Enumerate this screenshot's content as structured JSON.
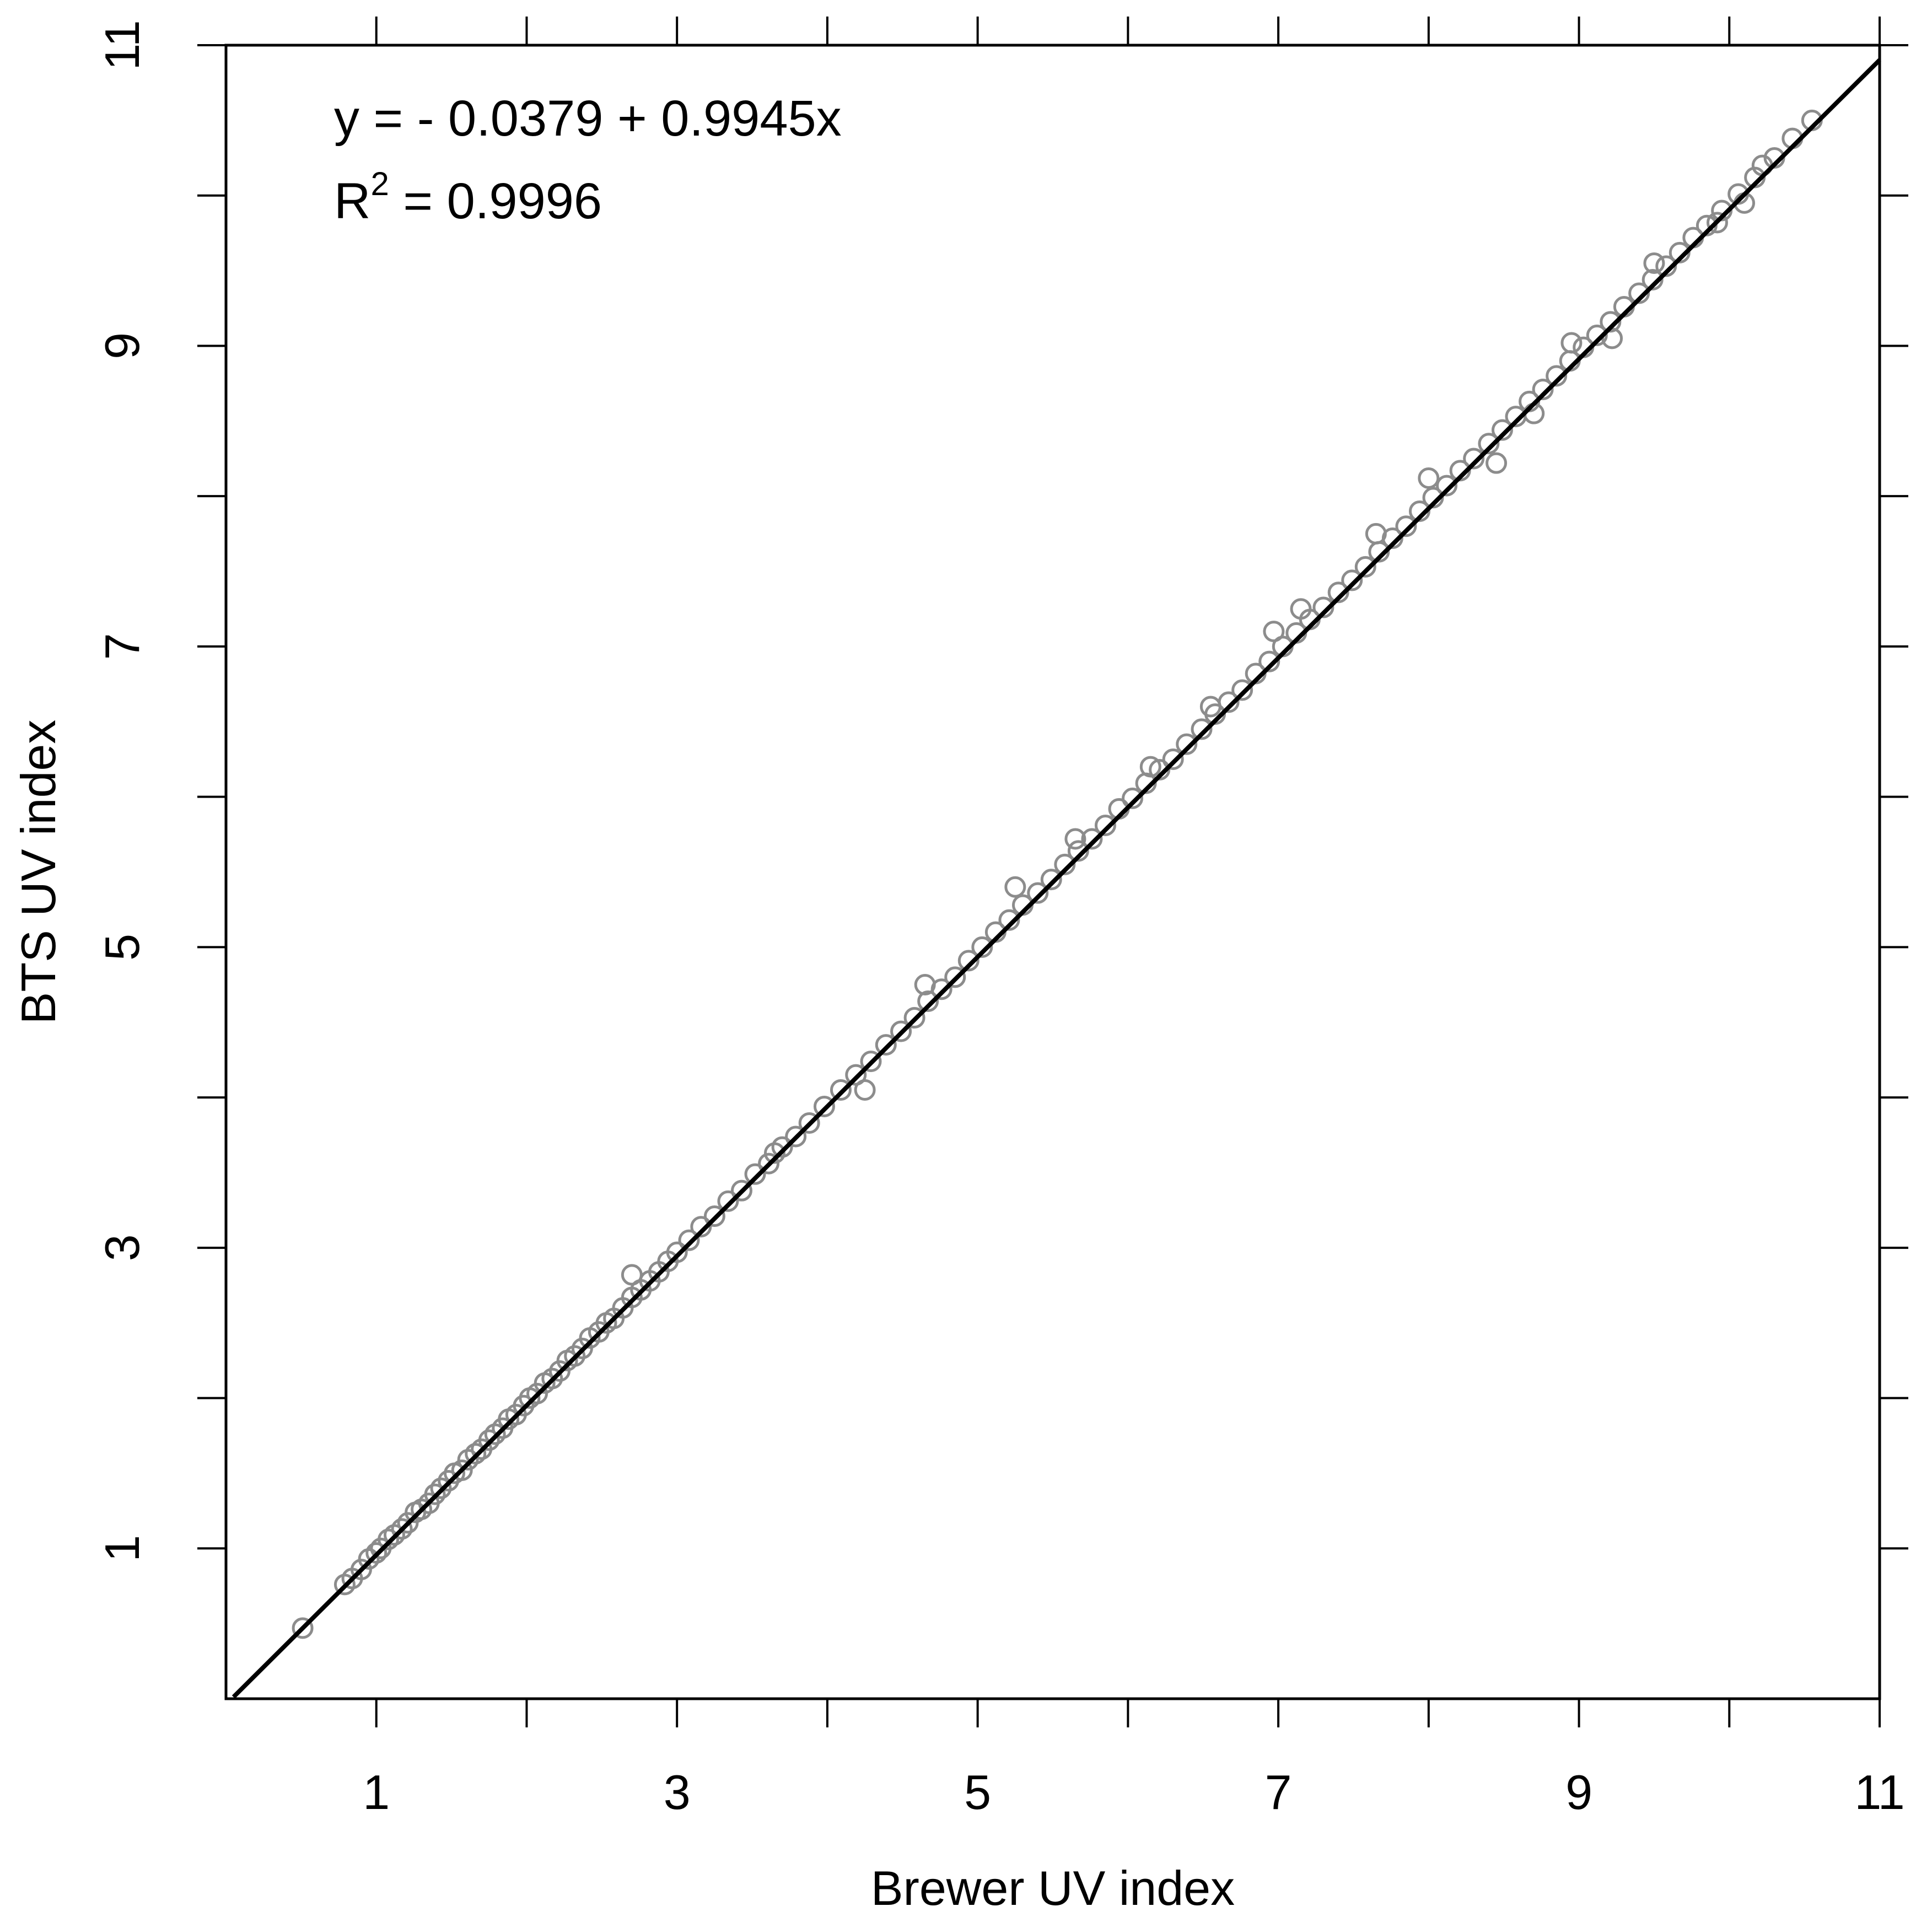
{
  "chart_data": {
    "type": "scatter",
    "title": "",
    "xlabel": "Brewer UV index",
    "ylabel": "BTS UV index",
    "xlim": [
      0,
      11
    ],
    "ylim": [
      0,
      11
    ],
    "x_tick_values": [
      1,
      3,
      5,
      7,
      9,
      11
    ],
    "x_tick_labels": [
      "1",
      "3",
      "5",
      "7",
      "9",
      "11"
    ],
    "x_minor_ticks": [
      2,
      4,
      6,
      8,
      10
    ],
    "y_tick_values": [
      1,
      3,
      5,
      7,
      9,
      11
    ],
    "y_tick_labels": [
      "1",
      "3",
      "5",
      "7",
      "9",
      "11"
    ],
    "y_minor_ticks": [
      2,
      4,
      6,
      8,
      10
    ],
    "grid": false,
    "legend": "none",
    "annotations": {
      "equation": "y = - 0.0379 + 0.9945x",
      "r2_prefix": "R",
      "r2_superscript": "2",
      "r2_value": " = 0.9996"
    },
    "fit_line": {
      "intercept": -0.0379,
      "slope": 0.9945,
      "x_range": [
        0.05,
        11
      ],
      "color": "#000000"
    },
    "series": [
      {
        "marker": "open-circle",
        "color": "#8c8c8c",
        "points": [
          [
            0.51,
            0.47
          ],
          [
            0.79,
            0.76
          ],
          [
            0.84,
            0.8
          ],
          [
            0.9,
            0.86
          ],
          [
            0.95,
            0.93
          ],
          [
            1.0,
            0.97
          ],
          [
            1.03,
            1.0
          ],
          [
            1.08,
            1.06
          ],
          [
            1.12,
            1.09
          ],
          [
            1.17,
            1.13
          ],
          [
            1.21,
            1.17
          ],
          [
            1.26,
            1.24
          ],
          [
            1.3,
            1.26
          ],
          [
            1.35,
            1.3
          ],
          [
            1.39,
            1.36
          ],
          [
            1.43,
            1.4
          ],
          [
            1.48,
            1.45
          ],
          [
            1.52,
            1.5
          ],
          [
            1.57,
            1.52
          ],
          [
            1.61,
            1.59
          ],
          [
            1.66,
            1.63
          ],
          [
            1.7,
            1.66
          ],
          [
            1.75,
            1.72
          ],
          [
            1.79,
            1.76
          ],
          [
            1.84,
            1.8
          ],
          [
            1.88,
            1.86
          ],
          [
            1.93,
            1.89
          ],
          [
            1.98,
            1.95
          ],
          [
            2.02,
            2.0
          ],
          [
            2.07,
            2.03
          ],
          [
            2.12,
            2.1
          ],
          [
            2.17,
            2.13
          ],
          [
            2.22,
            2.18
          ],
          [
            2.27,
            2.25
          ],
          [
            2.32,
            2.28
          ],
          [
            2.37,
            2.33
          ],
          [
            2.42,
            2.4
          ],
          [
            2.48,
            2.44
          ],
          [
            2.53,
            2.5
          ],
          [
            2.58,
            2.53
          ],
          [
            2.64,
            2.6
          ],
          [
            2.7,
            2.67
          ],
          [
            2.76,
            2.72
          ],
          [
            2.82,
            2.78
          ],
          [
            2.88,
            2.84
          ],
          [
            2.94,
            2.91
          ],
          [
            3.0,
            2.97
          ],
          [
            3.08,
            3.05
          ],
          [
            3.16,
            3.14
          ],
          [
            3.25,
            3.21
          ],
          [
            3.34,
            3.31
          ],
          [
            3.43,
            3.38
          ],
          [
            3.52,
            3.49
          ],
          [
            3.61,
            3.56
          ],
          [
            3.7,
            3.67
          ],
          [
            3.79,
            3.74
          ],
          [
            3.88,
            3.83
          ],
          [
            3.98,
            3.94
          ],
          [
            4.09,
            4.05
          ],
          [
            4.19,
            4.15
          ],
          [
            4.29,
            4.24
          ],
          [
            4.39,
            4.35
          ],
          [
            4.49,
            4.44
          ],
          [
            4.58,
            4.53
          ],
          [
            4.67,
            4.64
          ],
          [
            4.76,
            4.72
          ],
          [
            4.85,
            4.8
          ],
          [
            4.94,
            4.91
          ],
          [
            5.03,
            5.0
          ],
          [
            5.12,
            5.1
          ],
          [
            5.21,
            5.18
          ],
          [
            5.3,
            5.28
          ],
          [
            5.4,
            5.36
          ],
          [
            5.49,
            5.45
          ],
          [
            5.58,
            5.55
          ],
          [
            5.67,
            5.64
          ],
          [
            5.76,
            5.72
          ],
          [
            5.85,
            5.81
          ],
          [
            5.94,
            5.92
          ],
          [
            6.03,
            5.99
          ],
          [
            6.12,
            6.09
          ],
          [
            6.21,
            6.18
          ],
          [
            6.3,
            6.25
          ],
          [
            6.39,
            6.35
          ],
          [
            6.49,
            6.45
          ],
          [
            6.58,
            6.55
          ],
          [
            6.67,
            6.63
          ],
          [
            6.76,
            6.71
          ],
          [
            6.85,
            6.82
          ],
          [
            6.94,
            6.9
          ],
          [
            7.03,
            7.0
          ],
          [
            7.12,
            7.09
          ],
          [
            7.21,
            7.18
          ],
          [
            7.3,
            7.26
          ],
          [
            7.4,
            7.36
          ],
          [
            7.49,
            7.44
          ],
          [
            7.58,
            7.53
          ],
          [
            7.67,
            7.63
          ],
          [
            7.76,
            7.72
          ],
          [
            7.85,
            7.8
          ],
          [
            7.94,
            7.9
          ],
          [
            8.03,
            7.99
          ],
          [
            8.12,
            8.07
          ],
          [
            8.21,
            8.17
          ],
          [
            8.3,
            8.25
          ],
          [
            8.4,
            8.35
          ],
          [
            8.49,
            8.44
          ],
          [
            8.58,
            8.53
          ],
          [
            8.67,
            8.63
          ],
          [
            8.76,
            8.71
          ],
          [
            8.85,
            8.8
          ],
          [
            8.94,
            8.9
          ],
          [
            9.03,
            8.99
          ],
          [
            9.12,
            9.07
          ],
          [
            9.21,
            9.16
          ],
          [
            9.3,
            9.26
          ],
          [
            9.4,
            9.35
          ],
          [
            9.49,
            9.44
          ],
          [
            9.58,
            9.53
          ],
          [
            9.67,
            9.62
          ],
          [
            9.76,
            9.72
          ],
          [
            9.85,
            9.8
          ],
          [
            9.95,
            9.9
          ],
          [
            10.06,
            10.01
          ],
          [
            10.17,
            10.12
          ],
          [
            10.3,
            10.25
          ],
          [
            10.42,
            10.38
          ],
          [
            10.55,
            10.5
          ],
          [
            2.7,
            2.82
          ],
          [
            3.65,
            3.63
          ],
          [
            4.25,
            4.05
          ],
          [
            4.65,
            4.75
          ],
          [
            5.25,
            5.4
          ],
          [
            5.65,
            5.72
          ],
          [
            6.15,
            6.2
          ],
          [
            6.55,
            6.6
          ],
          [
            6.97,
            7.1
          ],
          [
            7.15,
            7.25
          ],
          [
            7.65,
            7.75
          ],
          [
            8.0,
            8.12
          ],
          [
            8.45,
            8.22
          ],
          [
            8.7,
            8.55
          ],
          [
            8.95,
            9.02
          ],
          [
            9.22,
            9.05
          ],
          [
            9.5,
            9.55
          ],
          [
            9.92,
            9.82
          ],
          [
            10.1,
            9.95
          ],
          [
            10.22,
            10.2
          ]
        ]
      }
    ]
  }
}
